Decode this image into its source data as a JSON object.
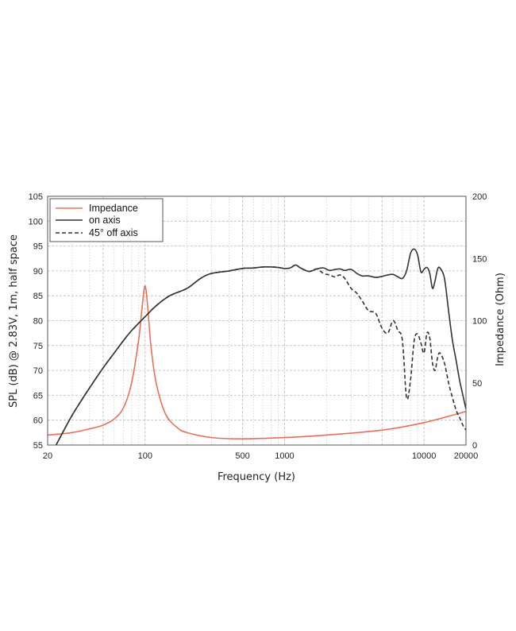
{
  "chart_data": {
    "type": "line",
    "xscale": "log",
    "xlabel": "Frequency (Hz)",
    "ylabel": "SPL (dB) @ 2.83V, 1m, half space",
    "y2label": "Impedance (Ohm)",
    "xlim": [
      20,
      20000
    ],
    "ylim": [
      55,
      105
    ],
    "y2lim": [
      0,
      200
    ],
    "xticks": [
      20,
      100,
      500,
      1000,
      10000,
      20000
    ],
    "xtick_labels": [
      "20",
      "100",
      "500",
      "1000",
      "10000",
      "20000"
    ],
    "yticks": [
      55,
      60,
      65,
      70,
      75,
      80,
      85,
      90,
      95,
      100,
      105
    ],
    "y2ticks": [
      0,
      50,
      100,
      150,
      200
    ],
    "grid": true,
    "legend": "top-left",
    "series": [
      {
        "name": "Impedance",
        "axis": "right",
        "style": "solid",
        "color": "#e8705a",
        "x": [
          20,
          25,
          30,
          40,
          50,
          60,
          70,
          80,
          90,
          95,
          100,
          105,
          110,
          120,
          140,
          170,
          200,
          300,
          500,
          1000,
          2000,
          5000,
          10000,
          20000
        ],
        "y": [
          8,
          9,
          10,
          13,
          16,
          21,
          30,
          50,
          85,
          110,
          128,
          108,
          80,
          50,
          25,
          14,
          10,
          6,
          5,
          6,
          8,
          12,
          18,
          27
        ]
      },
      {
        "name": "on axis",
        "axis": "left",
        "style": "solid",
        "color": "#333333",
        "x": [
          23,
          30,
          40,
          50,
          60,
          70,
          80,
          100,
          120,
          150,
          200,
          250,
          300,
          400,
          500,
          600,
          700,
          800,
          900,
          1000,
          1100,
          1200,
          1300,
          1500,
          1700,
          1900,
          2100,
          2300,
          2500,
          2700,
          3000,
          3300,
          3600,
          4000,
          4500,
          5000,
          5500,
          6000,
          6500,
          7000,
          7500,
          8000,
          8500,
          9000,
          9500,
          10000,
          10500,
          11000,
          11500,
          12000,
          12500,
          13000,
          14000,
          15000,
          16000,
          17000,
          18000,
          19000,
          20000
        ],
        "y": [
          55,
          61,
          66.5,
          70.5,
          73.5,
          76,
          78,
          80.8,
          83,
          85,
          86.5,
          88.5,
          89.5,
          90,
          90.5,
          90.6,
          90.8,
          90.8,
          90.7,
          90.5,
          90.6,
          91.2,
          90.6,
          89.9,
          90.4,
          90.6,
          90.1,
          90.3,
          90.4,
          90.1,
          90.3,
          89.5,
          89,
          89,
          88.7,
          88.9,
          89.2,
          89.3,
          88.8,
          88.5,
          90,
          93.5,
          94.4,
          93.2,
          89.8,
          90.3,
          90.7,
          89.5,
          86.5,
          88,
          90.3,
          90.6,
          88.6,
          82,
          76,
          72,
          68,
          65,
          62.2
        ]
      },
      {
        "name": "45° off axis",
        "axis": "left",
        "style": "dashed",
        "color": "#333333",
        "x": [
          23,
          30,
          40,
          50,
          60,
          70,
          80,
          100,
          120,
          150,
          200,
          250,
          300,
          400,
          500,
          600,
          700,
          800,
          900,
          1000,
          1100,
          1200,
          1300,
          1500,
          1700,
          1900,
          2100,
          2300,
          2500,
          2700,
          3000,
          3300,
          3600,
          4000,
          4500,
          5000,
          5500,
          6000,
          6500,
          7000,
          7500,
          8000,
          8500,
          9000,
          9500,
          10000,
          10500,
          11000,
          11500,
          12000,
          12500,
          13000,
          14000,
          15000,
          16000,
          17000,
          18000,
          19000,
          20000
        ],
        "y": [
          55,
          61,
          66.5,
          70.5,
          73.5,
          76,
          78,
          80.8,
          83,
          85,
          86.5,
          88.5,
          89.5,
          90,
          90.5,
          90.6,
          90.8,
          90.8,
          90.7,
          90.5,
          90.6,
          91.2,
          90.6,
          89.9,
          90.4,
          89.5,
          89.2,
          88.8,
          89.2,
          88.5,
          86.5,
          85.5,
          84,
          82,
          81.5,
          78.5,
          77.5,
          80,
          78,
          76,
          64.5,
          68,
          76,
          77.3,
          75.5,
          73.5,
          77.5,
          76.5,
          71.5,
          70,
          72.5,
          73.5,
          71.5,
          67.5,
          64.5,
          62,
          60.5,
          59,
          58
        ]
      }
    ]
  }
}
